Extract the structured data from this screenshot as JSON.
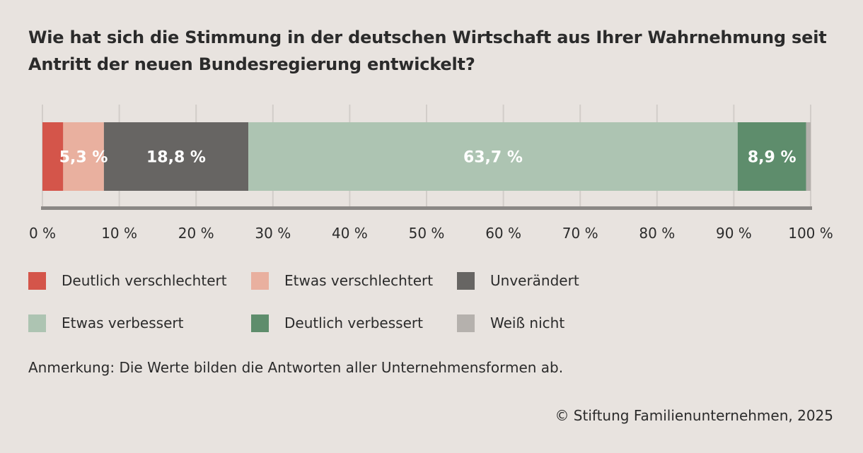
{
  "title": "Wie hat sich die Stimmung in der deutschen Wirtschaft aus Ihrer Wahrnehmung seit Antritt der neuen Bundesregierung entwickelt?",
  "chart_data": {
    "type": "bar",
    "orientation": "horizontal",
    "stacked": true,
    "xlim": [
      0,
      100
    ],
    "x_ticks": [
      "0 %",
      "10 %",
      "20 %",
      "30 %",
      "40 %",
      "50 %",
      "60 %",
      "70 %",
      "80 %",
      "90 %",
      "100 %"
    ],
    "grid": true,
    "legend_position": "bottom",
    "series": [
      {
        "name": "Deutlich verschlechtert",
        "value": 2.7,
        "label": "",
        "color": "#d4554a",
        "label_color": "#ffffff"
      },
      {
        "name": "Etwas verschlechtert",
        "value": 5.3,
        "label": "5,3 %",
        "color": "#e9b09f",
        "label_color": "#ffffff"
      },
      {
        "name": "Unverändert",
        "value": 18.8,
        "label": "18,8 %",
        "color": "#676563",
        "label_color": "#ffffff"
      },
      {
        "name": "Etwas verbessert",
        "value": 63.7,
        "label": "63,7 %",
        "color": "#adc4b2",
        "label_color": "#ffffff"
      },
      {
        "name": "Deutlich verbessert",
        "value": 8.9,
        "label": "8,9 %",
        "color": "#5e8d6c",
        "label_color": "#ffffff"
      },
      {
        "name": "Weiß nicht",
        "value": 0.6,
        "label": "",
        "color": "#b5b1ad",
        "label_color": "#ffffff"
      }
    ]
  },
  "note": "Anmerkung: Die Werte bilden die Antworten aller Unternehmensformen ab.",
  "source": "© Stiftung Familienunternehmen, 2025"
}
